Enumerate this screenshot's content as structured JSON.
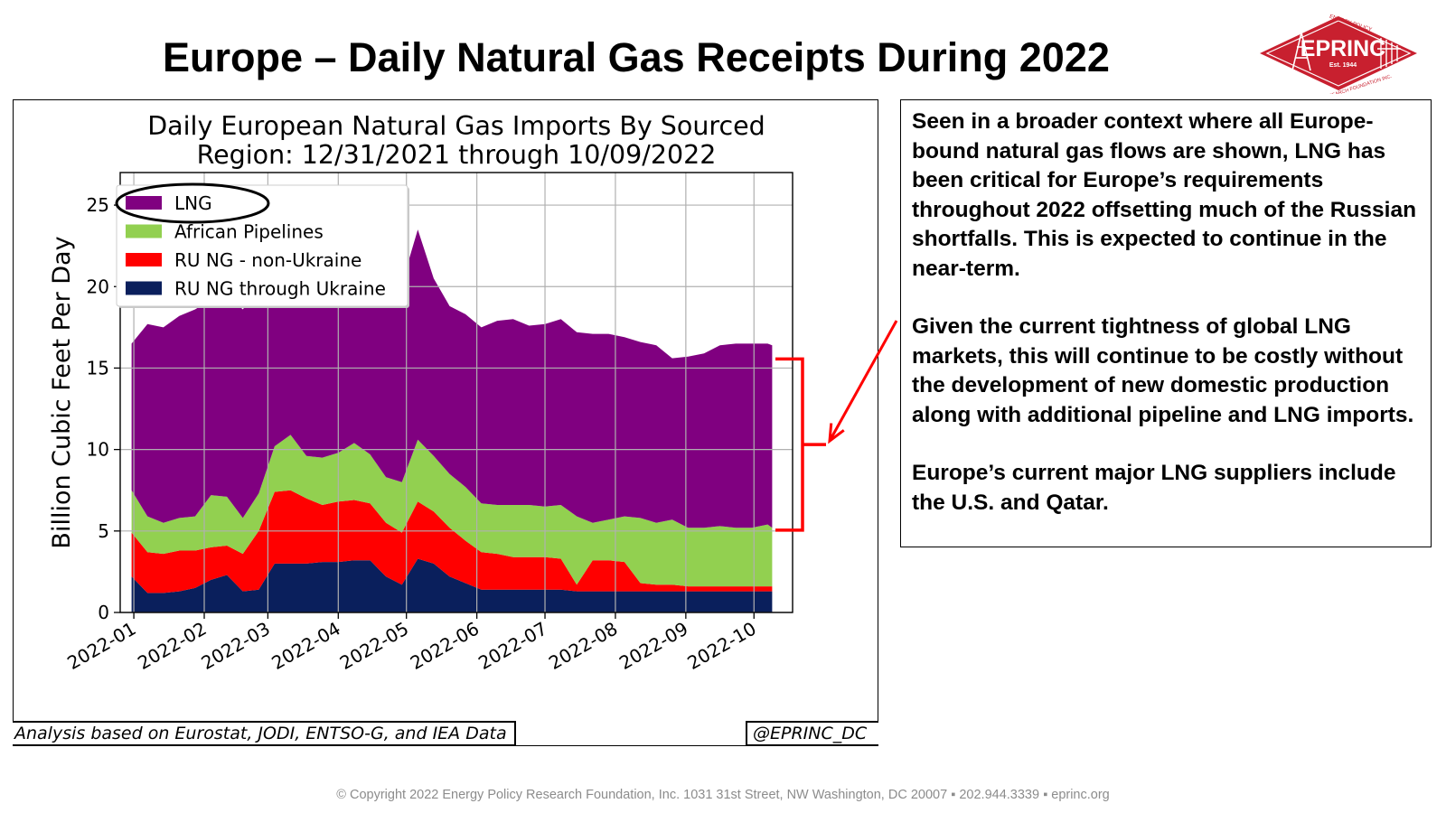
{
  "slide": {
    "title": "Europe – Daily Natural Gas Receipts During 2022"
  },
  "logo": {
    "name": "EPRINC",
    "est": "Est. 1944",
    "arc_top": "ENERGY POLICY",
    "arc_bottom": "RESEARCH FOUNDATION INC.",
    "color": "#c8202f"
  },
  "chart_data": {
    "type": "area",
    "stacked": true,
    "title_lines": [
      "Daily European Natural Gas Imports By Sourced",
      "Region: 12/31/2021 through 10/09/2022"
    ],
    "ylabel": "Billion Cubic Feet Per Day",
    "xlabel": "",
    "ylim": [
      0,
      27
    ],
    "yticks": [
      0,
      5,
      10,
      15,
      20,
      25
    ],
    "xlim": [
      "2021-12-26",
      "2022-10-18"
    ],
    "xticks": [
      "2022-01",
      "2022-02",
      "2022-03",
      "2022-04",
      "2022-05",
      "2022-06",
      "2022-07",
      "2022-08",
      "2022-09",
      "2022-10"
    ],
    "grid": true,
    "legend_position": "top-left",
    "highlighted_legend_entry": "LNG",
    "x": [
      "2021-12-31",
      "2022-01-07",
      "2022-01-14",
      "2022-01-21",
      "2022-01-28",
      "2022-02-04",
      "2022-02-11",
      "2022-02-18",
      "2022-02-25",
      "2022-03-04",
      "2022-03-11",
      "2022-03-18",
      "2022-03-25",
      "2022-04-01",
      "2022-04-08",
      "2022-04-15",
      "2022-04-22",
      "2022-04-29",
      "2022-05-06",
      "2022-05-13",
      "2022-05-20",
      "2022-05-27",
      "2022-06-03",
      "2022-06-10",
      "2022-06-17",
      "2022-06-24",
      "2022-07-01",
      "2022-07-08",
      "2022-07-15",
      "2022-07-22",
      "2022-07-29",
      "2022-08-05",
      "2022-08-12",
      "2022-08-19",
      "2022-08-26",
      "2022-09-02",
      "2022-09-09",
      "2022-09-16",
      "2022-09-23",
      "2022-09-30",
      "2022-10-07",
      "2022-10-09"
    ],
    "series": [
      {
        "name": "RU NG through Ukraine",
        "color": "#0a1f5c",
        "values": [
          2.2,
          1.2,
          1.2,
          1.3,
          1.5,
          2.0,
          2.3,
          1.3,
          1.4,
          3.0,
          3.0,
          3.0,
          3.1,
          3.1,
          3.2,
          3.2,
          2.2,
          1.7,
          3.3,
          3.0,
          2.2,
          1.8,
          1.4,
          1.4,
          1.4,
          1.4,
          1.4,
          1.4,
          1.3,
          1.3,
          1.3,
          1.3,
          1.3,
          1.3,
          1.3,
          1.3,
          1.3,
          1.3,
          1.3,
          1.3,
          1.3,
          1.3
        ]
      },
      {
        "name": "RU NG - non-Ukraine",
        "color": "#ff0000",
        "values": [
          2.7,
          2.5,
          2.4,
          2.5,
          2.3,
          2.0,
          1.8,
          2.3,
          3.6,
          4.4,
          4.5,
          4.0,
          3.5,
          3.7,
          3.7,
          3.5,
          3.3,
          3.2,
          3.5,
          3.2,
          3.0,
          2.6,
          2.3,
          2.2,
          2.0,
          2.0,
          2.0,
          1.9,
          0.4,
          1.9,
          1.9,
          1.8,
          0.5,
          0.4,
          0.4,
          0.3,
          0.3,
          0.3,
          0.3,
          0.3,
          0.3,
          0.3
        ]
      },
      {
        "name": "African Pipelines",
        "color": "#92d050",
        "values": [
          2.6,
          2.2,
          1.9,
          2.0,
          2.1,
          3.2,
          3.0,
          2.2,
          2.3,
          2.8,
          3.4,
          2.6,
          2.9,
          3.0,
          3.5,
          3.0,
          2.8,
          3.1,
          3.8,
          3.4,
          3.3,
          3.3,
          3.0,
          3.0,
          3.2,
          3.2,
          3.1,
          3.3,
          4.2,
          2.3,
          2.5,
          2.8,
          4.0,
          3.8,
          4.0,
          3.6,
          3.6,
          3.7,
          3.6,
          3.6,
          3.8,
          3.6
        ]
      },
      {
        "name": "LNG",
        "color": "#800080",
        "values": [
          9.0,
          11.8,
          12.0,
          12.4,
          12.7,
          12.0,
          12.4,
          12.8,
          12.6,
          10.0,
          9.8,
          10.2,
          10.5,
          11.2,
          10.1,
          10.8,
          11.2,
          12.2,
          12.9,
          10.9,
          10.3,
          10.6,
          10.8,
          11.3,
          11.4,
          11.0,
          11.2,
          11.4,
          11.3,
          11.6,
          11.4,
          11.0,
          10.8,
          10.9,
          9.9,
          10.5,
          10.7,
          11.1,
          11.3,
          11.3,
          11.1,
          11.2
        ]
      }
    ]
  },
  "annotation": {
    "bracket_color": "#ff0000",
    "bracket_range": [
      5.0,
      15.5
    ]
  },
  "source_note": "Analysis based on Eurostat, JODI, ENTSO-G, and IEA Data",
  "handle": "@EPRINC_DC",
  "text_box": {
    "paragraphs": [
      "Seen in a broader context where all Europe-bound natural gas flows are shown, LNG has been critical for Europe’s requirements throughout 2022 offsetting much of the Russian shortfalls. This is expected to continue in the near-term.",
      "Given the current tightness of global LNG markets, this will continue to be costly without the development of new domestic production along with additional pipeline and LNG imports.",
      "Europe’s current major LNG suppliers include the U.S. and Qatar."
    ]
  },
  "footer": "© Copyright 2022 Energy Policy Research Foundation, Inc. 1031 31st Street, NW Washington, DC 20007 ▪ 202.944.3339 ▪ eprinc.org"
}
